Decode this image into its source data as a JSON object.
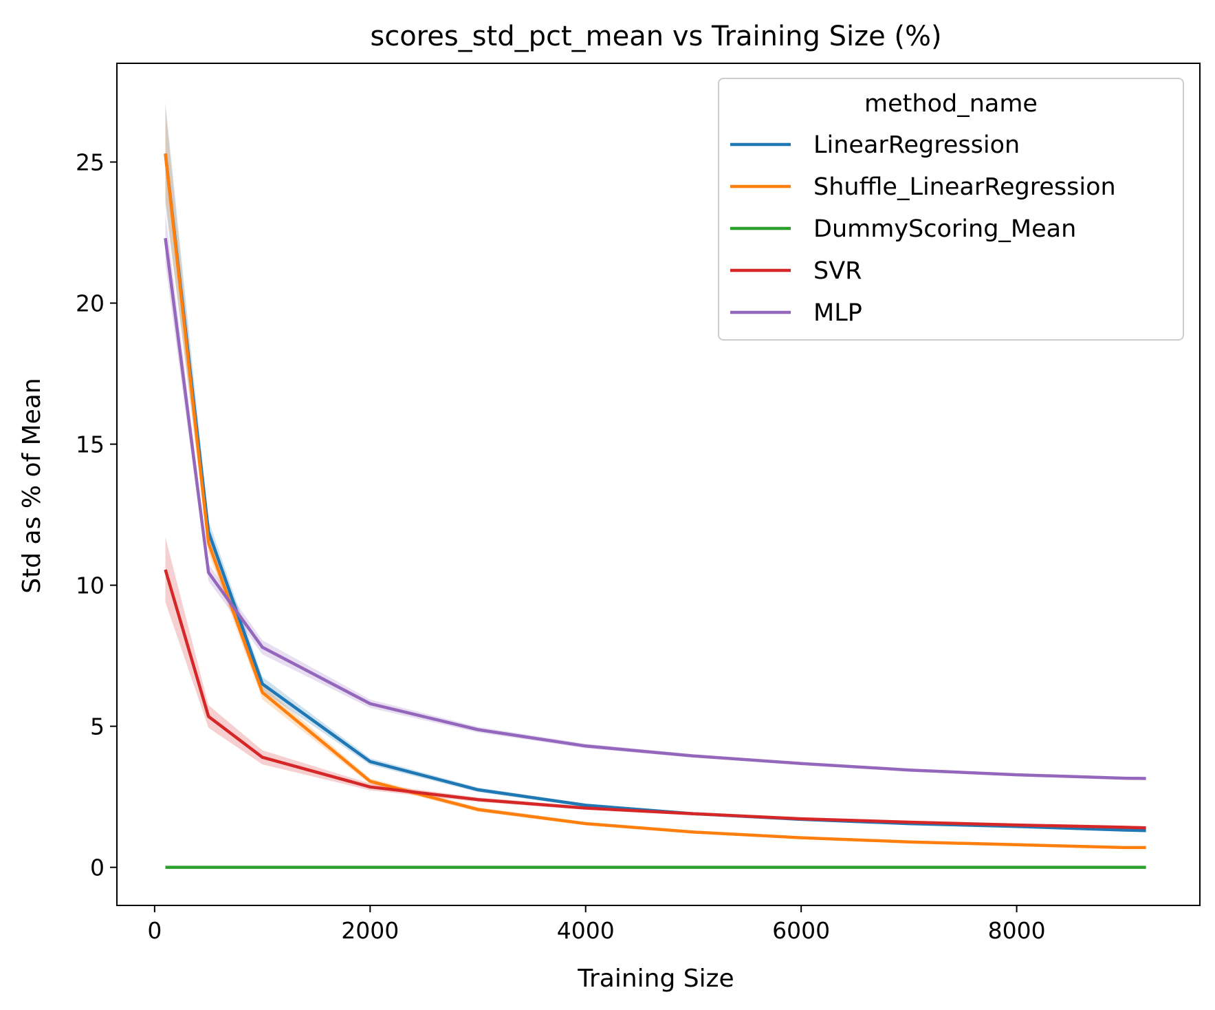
{
  "chart_data": {
    "type": "line",
    "title": "scores_std_pct_mean vs Training Size (%)",
    "xlabel": "Training Size",
    "ylabel": "Std as % of Mean",
    "xlim": [
      -350,
      9700
    ],
    "ylim": [
      -1.35,
      28.5
    ],
    "xticks": [
      0,
      2000,
      4000,
      6000,
      8000
    ],
    "yticks": [
      0,
      5,
      10,
      15,
      20,
      25
    ],
    "x": [
      100,
      500,
      1000,
      2000,
      3000,
      4000,
      5000,
      6000,
      7000,
      8000,
      9000,
      9200
    ],
    "legend": {
      "title": "method_name",
      "position": "upper right"
    },
    "series": [
      {
        "name": "LinearRegression",
        "color": "#1f77b4",
        "values": [
          25.3,
          11.9,
          6.5,
          3.75,
          2.75,
          2.2,
          1.9,
          1.7,
          1.55,
          1.45,
          1.32,
          1.3
        ],
        "band": [
          1.8,
          0.4,
          0.25,
          0.12,
          0.08,
          0.06,
          0.05,
          0.04,
          0.04,
          0.04,
          0.03,
          0.03
        ]
      },
      {
        "name": "Shuffle_LinearRegression",
        "color": "#ff7f0e",
        "values": [
          25.3,
          11.5,
          6.2,
          3.05,
          2.05,
          1.55,
          1.25,
          1.05,
          0.9,
          0.8,
          0.7,
          0.7
        ],
        "band": [
          1.6,
          0.35,
          0.25,
          0.1,
          0.08,
          0.06,
          0.05,
          0.04,
          0.04,
          0.03,
          0.03,
          0.03
        ]
      },
      {
        "name": "DummyScoring_Mean",
        "color": "#2ca02c",
        "values": [
          0,
          0,
          0,
          0,
          0,
          0,
          0,
          0,
          0,
          0,
          0,
          0
        ],
        "band": [
          0,
          0,
          0,
          0,
          0,
          0,
          0,
          0,
          0,
          0,
          0,
          0
        ]
      },
      {
        "name": "SVR",
        "color": "#d62728",
        "values": [
          10.55,
          5.35,
          3.9,
          2.85,
          2.4,
          2.1,
          1.9,
          1.72,
          1.6,
          1.5,
          1.42,
          1.4
        ],
        "band": [
          1.15,
          0.4,
          0.25,
          0.12,
          0.08,
          0.06,
          0.05,
          0.04,
          0.04,
          0.04,
          0.03,
          0.03
        ]
      },
      {
        "name": "MLP",
        "color": "#9467bd",
        "values": [
          22.3,
          10.45,
          7.8,
          5.8,
          4.88,
          4.3,
          3.95,
          3.68,
          3.45,
          3.28,
          3.16,
          3.15
        ],
        "band": [
          0.9,
          0.3,
          0.25,
          0.15,
          0.1,
          0.08,
          0.06,
          0.05,
          0.05,
          0.05,
          0.05,
          0.05
        ]
      }
    ]
  }
}
